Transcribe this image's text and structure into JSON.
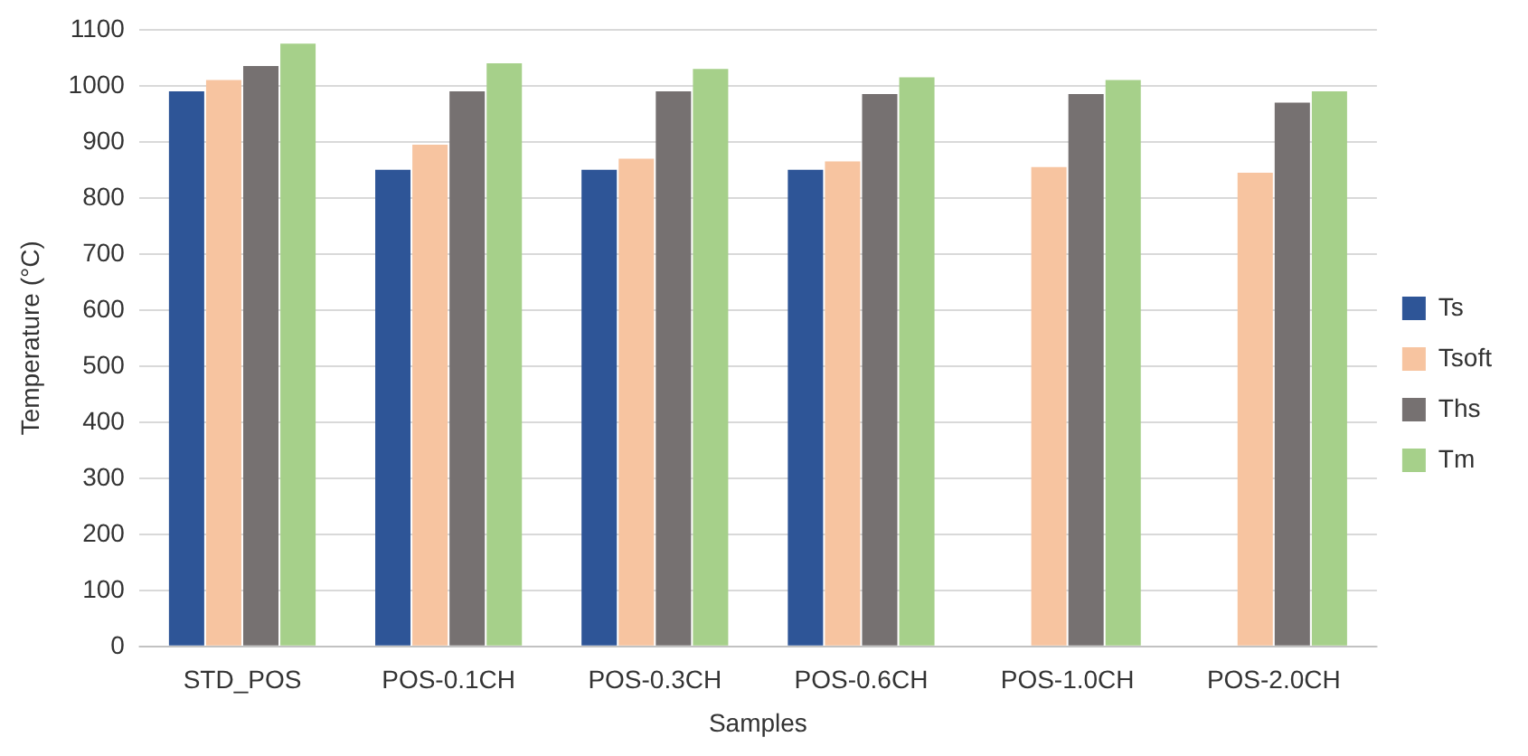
{
  "chart_data": {
    "type": "bar",
    "xlabel": "Samples",
    "ylabel": "Temperature (°C)",
    "categories": [
      "STD_POS",
      "POS-0.1CH",
      "POS-0.3CH",
      "POS-0.6CH",
      "POS-1.0CH",
      "POS-2.0CH"
    ],
    "series": [
      {
        "name": "Ts",
        "color": "#2e5597",
        "values": [
          990,
          850,
          850,
          850,
          null,
          null
        ]
      },
      {
        "name": "Tsoft",
        "color": "#f7c4a0",
        "values": [
          1010,
          895,
          870,
          865,
          855,
          845
        ]
      },
      {
        "name": "Ths",
        "color": "#767171",
        "values": [
          1035,
          990,
          990,
          985,
          985,
          970
        ]
      },
      {
        "name": "Tm",
        "color": "#a6d08a",
        "values": [
          1075,
          1040,
          1030,
          1015,
          1010,
          990
        ]
      }
    ],
    "ylim": [
      0,
      1100
    ],
    "yticks": [
      0,
      100,
      200,
      300,
      400,
      500,
      600,
      700,
      800,
      900,
      1000,
      1100
    ],
    "grid": "y",
    "legend": "right"
  }
}
